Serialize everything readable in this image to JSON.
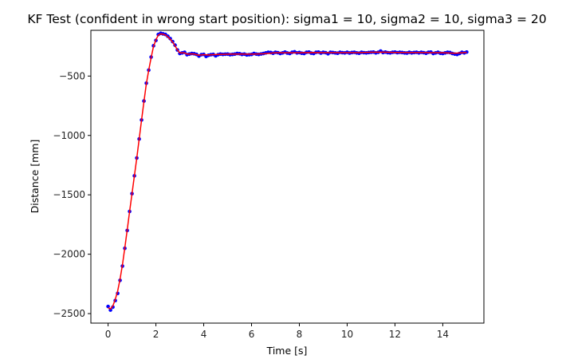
{
  "chart_data": {
    "type": "line",
    "title": "KF Test (confident in wrong start position): sigma1 = 10, sigma2 = 10, sigma3 = 20",
    "xlabel": "Time [s]",
    "ylabel": "Distance [mm]",
    "xlim": [
      -0.72,
      15.72
    ],
    "ylim": [
      -2580,
      -115
    ],
    "grid": false,
    "xticks": [
      0,
      2,
      4,
      6,
      8,
      10,
      12,
      14
    ],
    "xtick_labels": [
      "0",
      "2",
      "4",
      "6",
      "8",
      "10",
      "12",
      "14"
    ],
    "yticks": [
      -2500,
      -2000,
      -1500,
      -1000,
      -500
    ],
    "ytick_labels": [
      "−2500",
      "−2000",
      "−1500",
      "−1000",
      "−500"
    ],
    "series": [
      {
        "marker": "points",
        "color": "#0000ff",
        "x": [
          0.0,
          0.1,
          0.2,
          0.3,
          0.4,
          0.5,
          0.6,
          0.7,
          0.8,
          0.9,
          1.0,
          1.1,
          1.2,
          1.3,
          1.4,
          1.5,
          1.6,
          1.7,
          1.8,
          1.9,
          2.0,
          2.1,
          2.2,
          2.3,
          2.4,
          2.5,
          2.6,
          2.7,
          2.8,
          2.9,
          3.0,
          3.1,
          3.2,
          3.3,
          3.4,
          3.5,
          3.6,
          3.7,
          3.8,
          3.9,
          4.0,
          4.1,
          4.2,
          4.3,
          4.4,
          4.5,
          4.6,
          4.7,
          4.8,
          4.9,
          5.0,
          5.1,
          5.2,
          5.3,
          5.4,
          5.5,
          5.6,
          5.7,
          5.8,
          5.9,
          6.0,
          6.1,
          6.2,
          6.3,
          6.4,
          6.5,
          6.6,
          6.7,
          6.8,
          6.9,
          7.0,
          7.1,
          7.2,
          7.3,
          7.4,
          7.5,
          7.6,
          7.7,
          7.8,
          7.9,
          8.0,
          8.1,
          8.2,
          8.3,
          8.4,
          8.5,
          8.6,
          8.7,
          8.8,
          8.9,
          9.0,
          9.1,
          9.2,
          9.3,
          9.4,
          9.5,
          9.6,
          9.7,
          9.8,
          9.9,
          10.0,
          10.1,
          10.2,
          10.3,
          10.4,
          10.5,
          10.6,
          10.7,
          10.8,
          10.9,
          11.0,
          11.1,
          11.2,
          11.3,
          11.4,
          11.5,
          11.6,
          11.7,
          11.8,
          11.9,
          12.0,
          12.1,
          12.2,
          12.3,
          12.4,
          12.5,
          12.6,
          12.7,
          12.8,
          12.9,
          13.0,
          13.1,
          13.2,
          13.3,
          13.4,
          13.5,
          13.6,
          13.7,
          13.8,
          13.9,
          14.0,
          14.1,
          14.2,
          14.3,
          14.4,
          14.5,
          14.6,
          14.7,
          14.8,
          14.9,
          15.0
        ],
        "y": [
          -2440,
          -2470,
          -2445,
          -2390,
          -2330,
          -2220,
          -2100,
          -1950,
          -1800,
          -1640,
          -1490,
          -1340,
          -1190,
          -1030,
          -870,
          -710,
          -560,
          -450,
          -340,
          -245,
          -200,
          -150,
          -140,
          -145,
          -150,
          -165,
          -185,
          -210,
          -240,
          -280,
          -310,
          -305,
          -300,
          -320,
          -315,
          -310,
          -312,
          -318,
          -332,
          -320,
          -318,
          -335,
          -325,
          -320,
          -318,
          -330,
          -320,
          -315,
          -318,
          -316,
          -315,
          -320,
          -318,
          -315,
          -310,
          -312,
          -318,
          -315,
          -322,
          -320,
          -318,
          -310,
          -315,
          -318,
          -314,
          -310,
          -305,
          -300,
          -302,
          -308,
          -300,
          -303,
          -310,
          -305,
          -298,
          -306,
          -310,
          -300,
          -296,
          -305,
          -302,
          -308,
          -310,
          -300,
          -298,
          -307,
          -310,
          -300,
          -298,
          -306,
          -300,
          -303,
          -312,
          -300,
          -302,
          -305,
          -308,
          -300,
          -303,
          -305,
          -300,
          -306,
          -302,
          -300,
          -305,
          -308,
          -300,
          -303,
          -305,
          -302,
          -300,
          -298,
          -305,
          -300,
          -290,
          -302,
          -298,
          -303,
          -305,
          -300,
          -298,
          -303,
          -300,
          -302,
          -305,
          -306,
          -300,
          -305,
          -302,
          -300,
          -305,
          -300,
          -303,
          -308,
          -300,
          -298,
          -310,
          -305,
          -300,
          -308,
          -310,
          -305,
          -300,
          -302,
          -310,
          -315,
          -318,
          -310,
          -300,
          -305,
          -298
        ]
      },
      {
        "marker": "line",
        "color": "#ff0000",
        "x": [
          0.0,
          0.1,
          0.2,
          0.3,
          0.4,
          0.5,
          0.6,
          0.7,
          0.8,
          0.9,
          1.0,
          1.1,
          1.2,
          1.3,
          1.4,
          1.5,
          1.6,
          1.7,
          1.8,
          1.9,
          2.0,
          2.1,
          2.2,
          2.3,
          2.4,
          2.5,
          2.6,
          2.7,
          2.8,
          2.9,
          3.0,
          3.1,
          3.2,
          3.3,
          3.4,
          3.5,
          3.6,
          3.7,
          3.8,
          3.9,
          4.0,
          4.2,
          4.4,
          4.6,
          4.8,
          5.0,
          5.5,
          6.0,
          6.5,
          7.0,
          7.5,
          8.0,
          8.5,
          9.0,
          9.5,
          10.0,
          10.5,
          11.0,
          11.5,
          12.0,
          12.5,
          13.0,
          13.5,
          14.0,
          14.5,
          15.0
        ],
        "y": [
          -2450,
          -2460,
          -2435,
          -2380,
          -2310,
          -2210,
          -2090,
          -1945,
          -1795,
          -1640,
          -1490,
          -1340,
          -1190,
          -1030,
          -870,
          -715,
          -565,
          -450,
          -345,
          -250,
          -195,
          -155,
          -145,
          -148,
          -155,
          -170,
          -190,
          -215,
          -245,
          -280,
          -305,
          -305,
          -305,
          -315,
          -315,
          -313,
          -315,
          -320,
          -325,
          -322,
          -320,
          -322,
          -320,
          -318,
          -317,
          -316,
          -315,
          -316,
          -312,
          -304,
          -304,
          -304,
          -302,
          -303,
          -303,
          -303,
          -303,
          -300,
          -299,
          -301,
          -302,
          -302,
          -303,
          -304,
          -308,
          -301
        ]
      }
    ]
  }
}
